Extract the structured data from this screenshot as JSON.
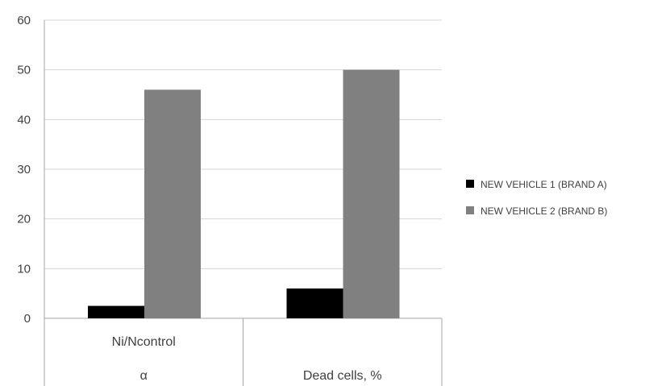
{
  "chart_data": {
    "type": "bar",
    "categories": [
      [
        "Ni/Ncontrol",
        "α"
      ],
      [
        "Dead cells, %"
      ]
    ],
    "series": [
      {
        "name": "NEW VEHICLE 1 (BRAND A)",
        "values": [
          2.5,
          6
        ],
        "color": "#000000"
      },
      {
        "name": "NEW VEHICLE 2 (BRAND B)",
        "values": [
          46,
          50
        ],
        "color": "#808080"
      }
    ],
    "y_ticks": [
      0,
      10,
      20,
      30,
      40,
      50,
      60
    ],
    "ylim": [
      0,
      60
    ],
    "grid": true,
    "legend_position": "right"
  }
}
